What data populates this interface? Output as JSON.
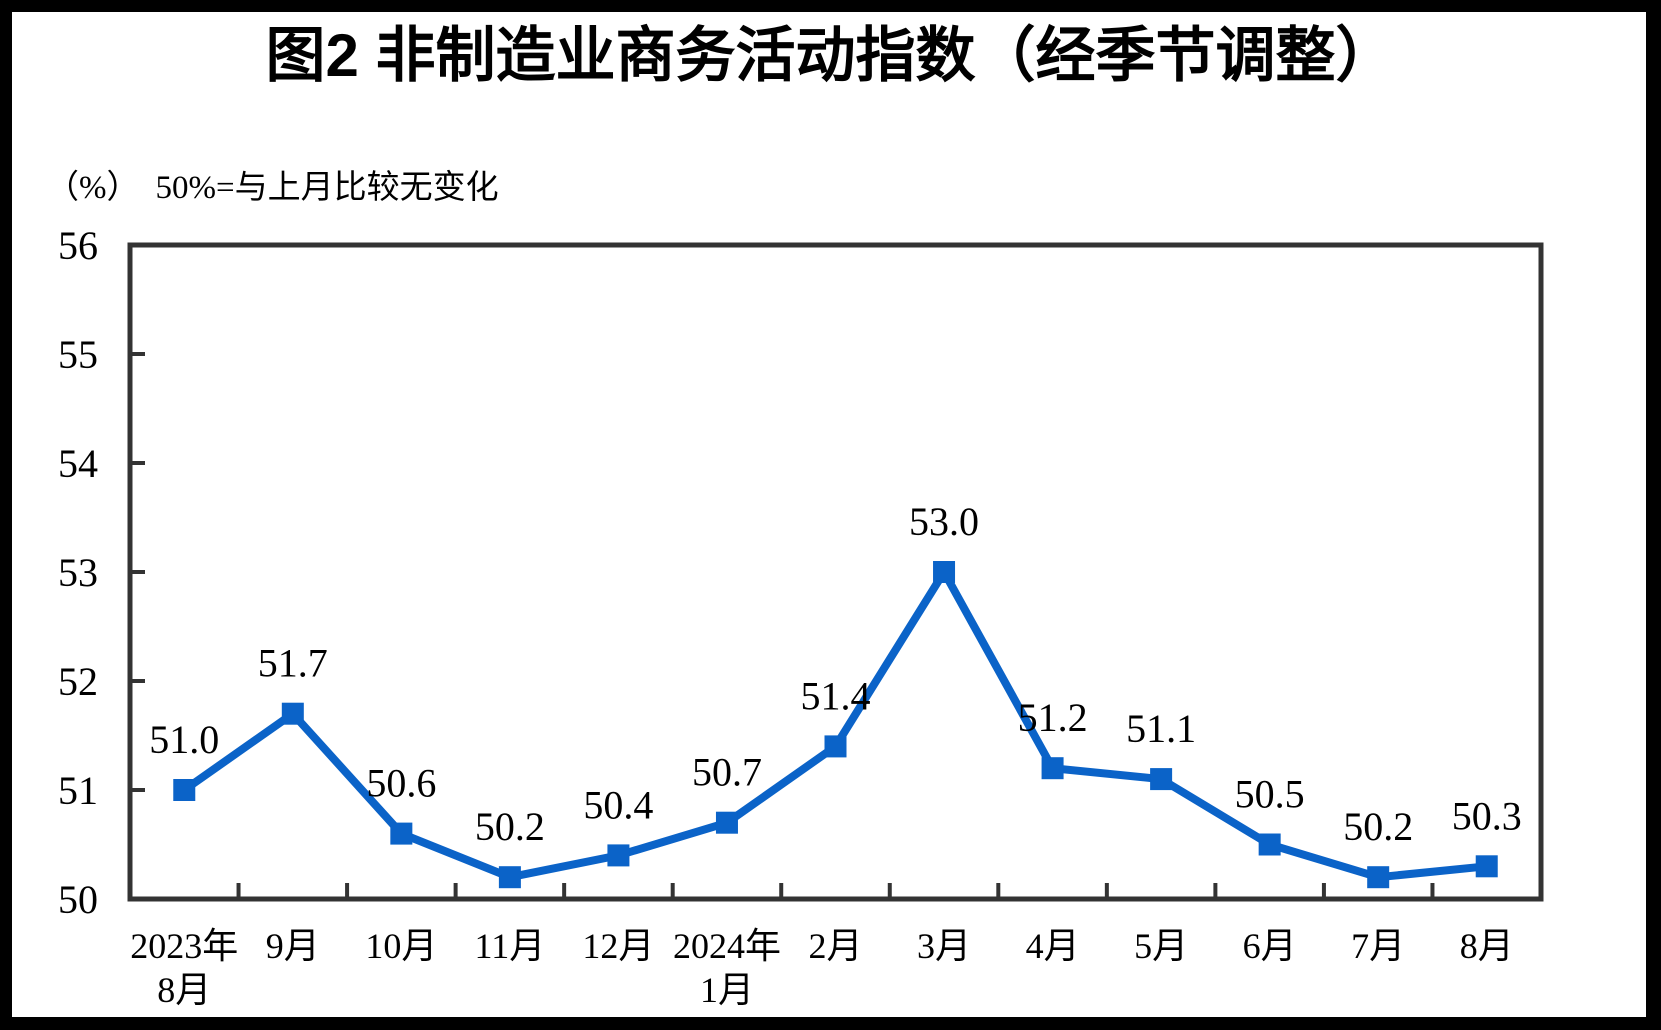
{
  "title": "图2 非制造业商务活动指数（经季节调整）",
  "subtitle": {
    "unit": "（%）",
    "note": "50%=与上月比较无变化"
  },
  "colors": {
    "line": "#0B63C8",
    "axis": "#333333",
    "text": "#000000",
    "page_background": "#FFFFFF",
    "frame_background": "#000000"
  },
  "chart_data": {
    "type": "line",
    "title": "图2 非制造业商务活动指数（经季节调整）",
    "unit_label": "（%）",
    "reference_note": "50%=与上月比较无变化",
    "categories": [
      "2023年\n8月",
      "9月",
      "10月",
      "11月",
      "12月",
      "2024年\n1月",
      "2月",
      "3月",
      "4月",
      "5月",
      "6月",
      "7月",
      "8月"
    ],
    "series": [
      {
        "name": "非制造业商务活动指数",
        "values": [
          51.0,
          51.7,
          50.6,
          50.2,
          50.4,
          50.7,
          51.4,
          53.0,
          51.2,
          51.1,
          50.5,
          50.2,
          50.3
        ],
        "point_labels": [
          "51.0",
          "51.7",
          "50.6",
          "50.2",
          "50.4",
          "50.7",
          "51.4",
          "53.0",
          "51.2",
          "51.1",
          "50.5",
          "50.2",
          "50.3"
        ]
      }
    ],
    "ylim": [
      50,
      56
    ],
    "yticks": [
      50,
      51,
      52,
      53,
      54,
      55,
      56
    ],
    "grid": false,
    "legend_position": "none",
    "marker_shape": "square"
  }
}
